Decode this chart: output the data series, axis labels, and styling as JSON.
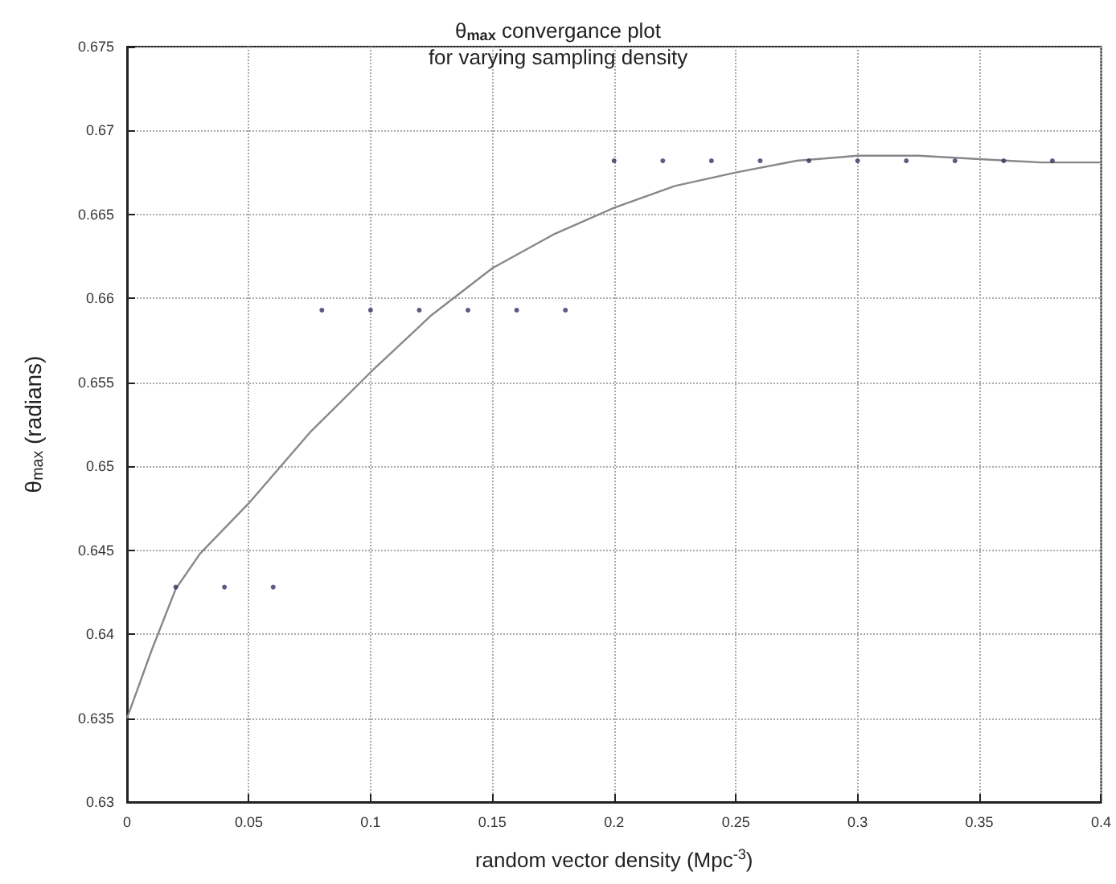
{
  "chart_data": {
    "type": "scatter",
    "title": "θ$_{max}$ convergance plot",
    "subtitle": "for varying sampling density",
    "xlabel": "random vector density (Mpc$^{-3}$)",
    "ylabel": "θ$_{max}$ (radians)",
    "xlim": [
      0,
      0.4
    ],
    "xticks": [
      0,
      0.05,
      0.1,
      0.15,
      0.2,
      0.25,
      0.3,
      0.35,
      0.4
    ],
    "ylim": [
      0.63,
      0.675
    ],
    "yticks": [
      0.63,
      0.635,
      0.64,
      0.645,
      0.65,
      0.655,
      0.66,
      0.665,
      0.67,
      0.675
    ],
    "grid": true,
    "series": [
      {
        "color": "#333366",
        "marker": "circle",
        "x": [
          0.02,
          0.04,
          0.06,
          0.08,
          0.1,
          0.12,
          0.14,
          0.16,
          0.18,
          0.2,
          0.22,
          0.24,
          0.26,
          0.28,
          0.3,
          0.32,
          0.34,
          0.36,
          0.38
        ],
        "values": [
          0.6428,
          0.6428,
          0.6428,
          0.6593,
          0.6593,
          0.6593,
          0.6593,
          0.6593,
          0.6593,
          0.6682,
          0.6682,
          0.6682,
          0.6682,
          0.6682,
          0.6682,
          0.6682,
          0.6682,
          0.6682,
          0.6682
        ]
      },
      {
        "type": "line",
        "color": "#888888",
        "marker": "none",
        "line_style": "solid",
        "x": [
          0,
          0.01,
          0.02,
          0.03,
          0.05,
          0.075,
          0.1,
          0.125,
          0.15,
          0.175,
          0.2,
          0.225,
          0.25,
          0.275,
          0.3,
          0.325,
          0.35,
          0.375,
          0.4
        ],
        "values": [
          0.635,
          0.639,
          0.6427,
          0.6448,
          0.6478,
          0.652,
          0.6556,
          0.659,
          0.6618,
          0.6638,
          0.6654,
          0.6667,
          0.6675,
          0.6682,
          0.6685,
          0.6685,
          0.6683,
          0.6681,
          0.6681
        ]
      }
    ]
  }
}
